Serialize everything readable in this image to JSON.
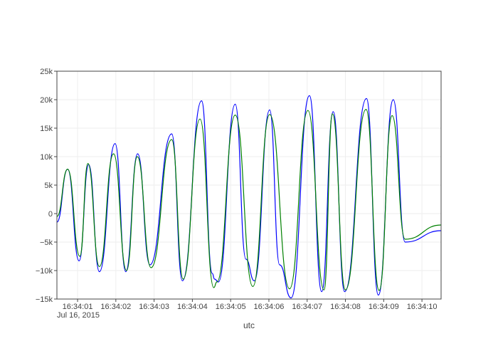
{
  "chart_data": {
    "type": "line",
    "xlabel": "utc",
    "ylabel": "",
    "title": "",
    "x_unit": "seconds",
    "x_tick_date": "Jul 16, 2015",
    "x_range": [
      0.46,
      10.5
    ],
    "x_ticks": [
      {
        "t": 1,
        "label": "16:34:01"
      },
      {
        "t": 2,
        "label": "16:34:02"
      },
      {
        "t": 3,
        "label": "16:34:03"
      },
      {
        "t": 4,
        "label": "16:34:04"
      },
      {
        "t": 5,
        "label": "16:34:05"
      },
      {
        "t": 6,
        "label": "16:34:06"
      },
      {
        "t": 7,
        "label": "16:34:07"
      },
      {
        "t": 8,
        "label": "16:34:08"
      },
      {
        "t": 9,
        "label": "16:34:09"
      },
      {
        "t": 10,
        "label": "16:34:10"
      }
    ],
    "ylim": [
      -15000,
      25000
    ],
    "y_ticks": [
      {
        "v": 25000,
        "label": "25k"
      },
      {
        "v": 20000,
        "label": "20k"
      },
      {
        "v": 15000,
        "label": "15k"
      },
      {
        "v": 10000,
        "label": "10k"
      },
      {
        "v": 5000,
        "label": "5k"
      },
      {
        "v": 0,
        "label": "0"
      },
      {
        "v": -5000,
        "label": "−5k"
      },
      {
        "v": -10000,
        "label": "−10k"
      },
      {
        "v": -15000,
        "label": "−15k"
      }
    ],
    "grid": true,
    "series": [
      {
        "color": "#0000ff",
        "points": [
          [
            0.46,
            -1500
          ],
          [
            0.74,
            7800
          ],
          [
            1.04,
            -8300
          ],
          [
            1.29,
            8600
          ],
          [
            1.57,
            -10200
          ],
          [
            1.98,
            12300
          ],
          [
            2.26,
            -10200
          ],
          [
            2.57,
            10500
          ],
          [
            2.89,
            -9000
          ],
          [
            3.46,
            14000
          ],
          [
            3.74,
            -11800
          ],
          [
            4.24,
            19800
          ],
          [
            4.52,
            -10500
          ],
          [
            4.58,
            -11500
          ],
          [
            4.68,
            -12000
          ],
          [
            5.12,
            19200
          ],
          [
            5.4,
            -8000
          ],
          [
            5.62,
            -11800
          ],
          [
            6.02,
            18200
          ],
          [
            6.28,
            -9000
          ],
          [
            6.58,
            -14800
          ],
          [
            7.06,
            20700
          ],
          [
            7.38,
            -13700
          ],
          [
            7.68,
            17900
          ],
          [
            7.98,
            -13700
          ],
          [
            8.55,
            20200
          ],
          [
            8.86,
            -14300
          ],
          [
            9.25,
            20000
          ],
          [
            9.56,
            -5000
          ],
          [
            10.5,
            -3000
          ]
        ]
      },
      {
        "color": "#008000",
        "points": [
          [
            0.46,
            -500
          ],
          [
            0.74,
            7800
          ],
          [
            1.06,
            -7500
          ],
          [
            1.27,
            8800
          ],
          [
            1.57,
            -9300
          ],
          [
            1.94,
            10500
          ],
          [
            2.28,
            -10000
          ],
          [
            2.56,
            10000
          ],
          [
            2.92,
            -9500
          ],
          [
            3.46,
            13000
          ],
          [
            3.76,
            -11500
          ],
          [
            4.2,
            16600
          ],
          [
            4.56,
            -13000
          ],
          [
            4.64,
            -12000
          ],
          [
            5.12,
            17300
          ],
          [
            5.58,
            -12800
          ],
          [
            6.02,
            17400
          ],
          [
            6.54,
            -13200
          ],
          [
            7.02,
            18100
          ],
          [
            7.44,
            -13400
          ],
          [
            7.66,
            17500
          ],
          [
            8.0,
            -13400
          ],
          [
            8.54,
            18300
          ],
          [
            8.88,
            -13500
          ],
          [
            9.22,
            17200
          ],
          [
            9.56,
            -4500
          ],
          [
            10.5,
            -2000
          ]
        ]
      }
    ]
  }
}
